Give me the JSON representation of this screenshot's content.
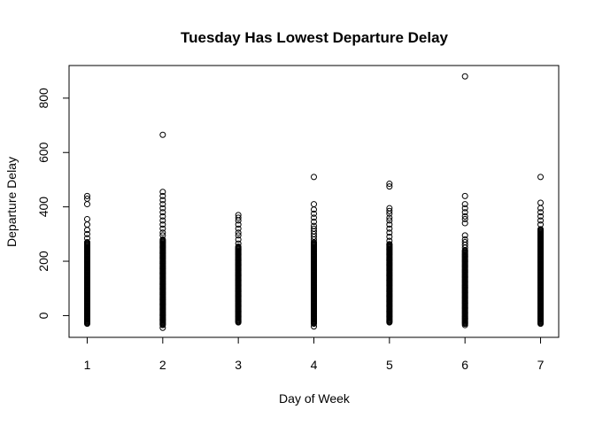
{
  "chart_data": {
    "type": "scatter",
    "title": "Tuesday Has Lowest Departure Delay",
    "xlabel": "Day of Week",
    "ylabel": "Departure Delay",
    "xlim": [
      0.76,
      7.24
    ],
    "ylim": [
      -80,
      920
    ],
    "x_ticks": [
      1,
      2,
      3,
      4,
      5,
      6,
      7
    ],
    "y_ticks": [
      0,
      200,
      400,
      600,
      800
    ],
    "grid": false,
    "legend": "none",
    "marker": "open-circle",
    "series": [
      {
        "days": [
          {
            "x": 1,
            "range": [
              -30,
              270
            ],
            "points": [
              285,
              300,
              315,
              335,
              355,
              410,
              430,
              440
            ]
          },
          {
            "x": 2,
            "range": [
              -35,
              280
            ],
            "points": [
              -45,
              295,
              305,
              320,
              335,
              350,
              365,
              380,
              395,
              410,
              425,
              440,
              455,
              665
            ]
          },
          {
            "x": 3,
            "range": [
              -25,
              255
            ],
            "points": [
              265,
              280,
              295,
              305,
              320,
              335,
              350,
              360,
              370
            ]
          },
          {
            "x": 4,
            "range": [
              -30,
              270
            ],
            "points": [
              -40,
              280,
              290,
              300,
              310,
              320,
              330,
              345,
              360,
              375,
              390,
              410,
              510
            ]
          },
          {
            "x": 5,
            "range": [
              -25,
              265
            ],
            "points": [
              275,
              290,
              305,
              320,
              335,
              350,
              360,
              375,
              385,
              395,
              475,
              485
            ]
          },
          {
            "x": 6,
            "range": [
              -30,
              240
            ],
            "points": [
              -35,
              250,
              260,
              270,
              280,
              295,
              340,
              355,
              365,
              380,
              395,
              410,
              440,
              880
            ]
          },
          {
            "x": 7,
            "range": [
              -30,
              320
            ],
            "points": [
              335,
              350,
              365,
              380,
              395,
              415,
              510
            ]
          }
        ]
      }
    ]
  }
}
